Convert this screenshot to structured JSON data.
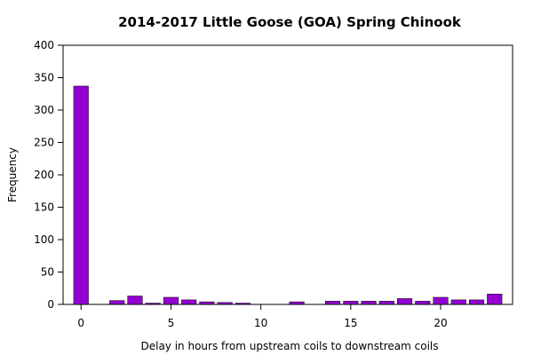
{
  "chart_data": {
    "type": "bar",
    "title": "2014-2017 Little Goose (GOA) Spring Chinook",
    "xlabel": "Delay in hours from upstream coils to downstream coils",
    "ylabel": "Frequency",
    "xlim": [
      -1,
      24
    ],
    "ylim": [
      0,
      400
    ],
    "x_ticks": [
      0,
      5,
      10,
      15,
      20
    ],
    "y_ticks": [
      0,
      50,
      100,
      150,
      200,
      250,
      300,
      350,
      400
    ],
    "grid": false,
    "bar_color": "#9400d3",
    "x": [
      0,
      1,
      2,
      3,
      4,
      5,
      6,
      7,
      8,
      9,
      10,
      11,
      12,
      13,
      14,
      15,
      16,
      17,
      18,
      19,
      20,
      21,
      22,
      23
    ],
    "values": [
      337,
      0,
      6,
      13,
      2,
      11,
      7,
      4,
      3,
      2,
      0,
      0,
      4,
      0,
      5,
      5,
      5,
      5,
      9,
      5,
      11,
      7,
      7,
      16
    ]
  }
}
